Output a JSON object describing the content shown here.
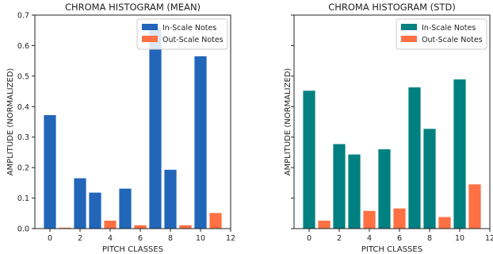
{
  "colors": {
    "in_scale_left": "#2166b8",
    "in_scale_right": "#008080",
    "out_scale": "#ff7043"
  },
  "chart_data": [
    {
      "type": "bar",
      "title": "CHROMA HISTOGRAM (MEAN)",
      "xlabel": "PITCH CLASSES",
      "ylabel": "AMPLITUDE (NORMALIZED)",
      "xlim": [
        -1,
        12
      ],
      "ylim": [
        0,
        0.7
      ],
      "x_ticks": [
        0,
        2,
        4,
        6,
        8,
        10,
        12
      ],
      "y_ticks": [
        0.0,
        0.1,
        0.2,
        0.3,
        0.4,
        0.5,
        0.6,
        0.7
      ],
      "y_tick_labels": [
        "0.0",
        "0.1",
        "0.2",
        "0.3",
        "0.4",
        "0.5",
        "0.6",
        "0.7"
      ],
      "legend_position": "top-right",
      "series": [
        {
          "name": "In-Scale Notes",
          "color": "#2166b8",
          "points": [
            [
              0,
              0.372
            ],
            [
              2,
              0.165
            ],
            [
              3,
              0.118
            ],
            [
              5,
              0.131
            ],
            [
              7,
              0.657
            ],
            [
              8,
              0.193
            ],
            [
              10,
              0.565
            ]
          ]
        },
        {
          "name": "Out-Scale Notes",
          "color": "#ff7043",
          "points": [
            [
              1,
              0.003
            ],
            [
              4,
              0.026
            ],
            [
              6,
              0.011
            ],
            [
              9,
              0.011
            ],
            [
              11,
              0.051
            ]
          ]
        }
      ]
    },
    {
      "type": "bar",
      "title": "CHROMA HISTOGRAM (STD)",
      "xlabel": "PITCH CLASSES",
      "ylabel": "AMPLITUDE (NORMALIZED)",
      "xlim": [
        -1,
        12
      ],
      "ylim": [
        0,
        0.7
      ],
      "x_ticks": [
        0,
        2,
        4,
        6,
        8,
        10,
        12
      ],
      "y_ticks": [
        0.0,
        0.1,
        0.2,
        0.3,
        0.4,
        0.5,
        0.6,
        0.7
      ],
      "y_tick_labels": [
        "",
        "",
        "",
        "",
        "",
        "",
        "",
        ""
      ],
      "legend_position": "top-right",
      "series": [
        {
          "name": "In-Scale Notes",
          "color": "#008080",
          "points": [
            [
              0,
              0.452
            ],
            [
              2,
              0.277
            ],
            [
              3,
              0.243
            ],
            [
              5,
              0.26
            ],
            [
              7,
              0.463
            ],
            [
              8,
              0.327
            ],
            [
              10,
              0.489
            ]
          ]
        },
        {
          "name": "Out-Scale Notes",
          "color": "#ff7043",
          "points": [
            [
              1,
              0.026
            ],
            [
              4,
              0.058
            ],
            [
              6,
              0.066
            ],
            [
              9,
              0.038
            ],
            [
              11,
              0.145
            ]
          ]
        }
      ]
    }
  ]
}
